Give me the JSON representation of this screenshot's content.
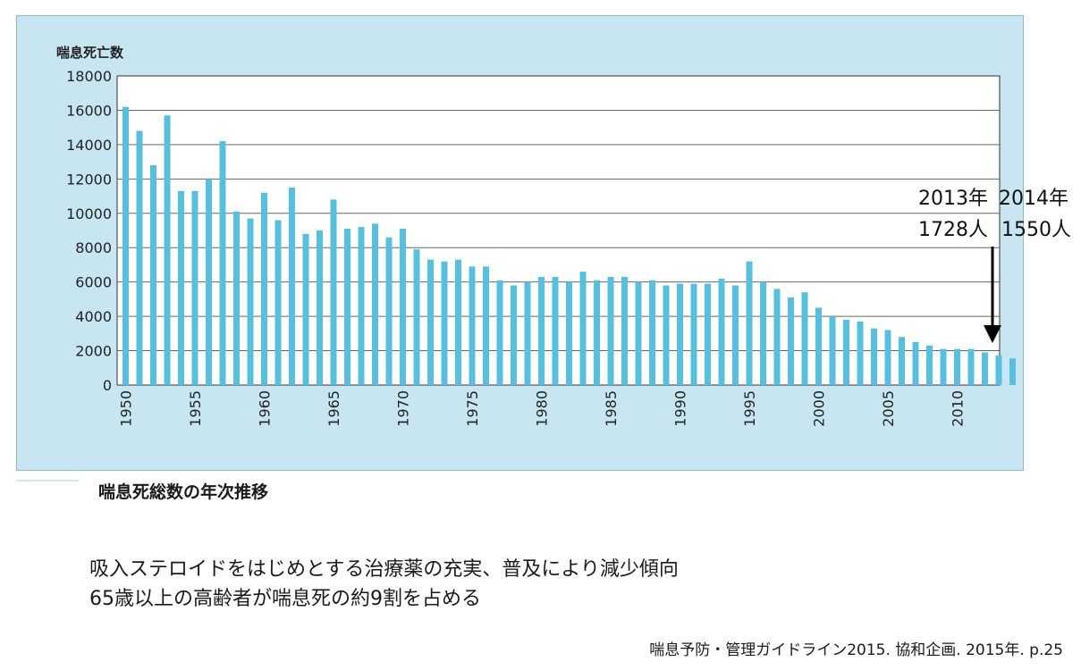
{
  "chart_data": {
    "type": "bar",
    "ylabel": "喘息死亡数",
    "ylim": [
      0,
      18000
    ],
    "yticks": [
      0,
      2000,
      4000,
      6000,
      8000,
      10000,
      12000,
      14000,
      16000,
      18000
    ],
    "xticks": [
      1950,
      1955,
      1960,
      1965,
      1970,
      1975,
      1980,
      1985,
      1990,
      1995,
      2000,
      2005,
      2010
    ],
    "grid": true,
    "bar_color": "#56c0de",
    "x": [
      1950,
      1951,
      1952,
      1953,
      1954,
      1955,
      1956,
      1957,
      1958,
      1959,
      1960,
      1961,
      1962,
      1963,
      1964,
      1965,
      1966,
      1967,
      1968,
      1969,
      1970,
      1971,
      1972,
      1973,
      1974,
      1975,
      1976,
      1977,
      1978,
      1979,
      1980,
      1981,
      1982,
      1983,
      1984,
      1985,
      1986,
      1987,
      1988,
      1989,
      1990,
      1991,
      1992,
      1993,
      1994,
      1995,
      1996,
      1997,
      1998,
      1999,
      2000,
      2001,
      2002,
      2003,
      2004,
      2005,
      2006,
      2007,
      2008,
      2009,
      2010,
      2011,
      2012,
      2013,
      2014
    ],
    "values": [
      16200,
      14800,
      12800,
      15700,
      11300,
      11300,
      12000,
      14200,
      10100,
      9700,
      11200,
      9600,
      11500,
      8800,
      9000,
      10800,
      9100,
      9200,
      9400,
      8600,
      9100,
      7900,
      7300,
      7200,
      7300,
      6900,
      6900,
      6100,
      5800,
      6000,
      6300,
      6300,
      6000,
      6600,
      6100,
      6300,
      6300,
      6000,
      6100,
      5800,
      5900,
      5900,
      5900,
      6200,
      5800,
      7200,
      6000,
      5600,
      5100,
      5400,
      4500,
      4000,
      3800,
      3700,
      3300,
      3200,
      2800,
      2500,
      2300,
      2100,
      2100,
      2100,
      1900,
      1728,
      1550
    ],
    "annotations": {
      "year_2013": "2013年",
      "year_2014": "2014年",
      "count_2013": "1728人",
      "count_2014": "1550人"
    }
  },
  "caption": "喘息死総数の年次推移",
  "notes": [
    "吸入ステロイドをはじめとする治療薬の充実、普及により減少傾向",
    "65歳以上の高齢者が喘息死の約9割を占める"
  ],
  "source": "喘息予防・管理ガイドライン2015. 協和企画. 2015年. p.25"
}
